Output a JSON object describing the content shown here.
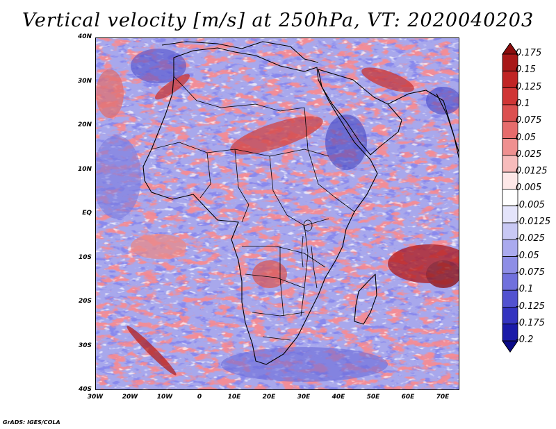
{
  "title": "Vertical velocity [m/s] at 250hPa, VT: 2020040203",
  "credit": "GrADS: IGES/COLA",
  "axes": {
    "lon_ticks": [
      "30W",
      "20W",
      "10W",
      "0",
      "10E",
      "20E",
      "30E",
      "40E",
      "50E",
      "60E",
      "70E"
    ],
    "lat_ticks": [
      "40N",
      "30N",
      "20N",
      "10N",
      "EQ",
      "10S",
      "20S",
      "30S",
      "40S"
    ]
  },
  "colorbar": {
    "labels": [
      "0.175",
      "0.15",
      "0.125",
      "0.1",
      "0.075",
      "0.05",
      "0.025",
      "0.0125",
      "0.005",
      "-0.005",
      "-0.0125",
      "-0.025",
      "-0.05",
      "-0.075",
      "-0.1",
      "-0.125",
      "-0.175",
      "-0.2"
    ],
    "colors": [
      "#8b0d0d",
      "#a81818",
      "#c02424",
      "#d03535",
      "#dc5050",
      "#e66c6c",
      "#ef9090",
      "#f7bcbc",
      "#fde8e8",
      "#ffffff",
      "#e4e4fb",
      "#c8c8f4",
      "#aaaaee",
      "#8e8ee6",
      "#7070dd",
      "#5252d0",
      "#3434c0",
      "#1a1aa8",
      "#0a0a88"
    ]
  }
}
